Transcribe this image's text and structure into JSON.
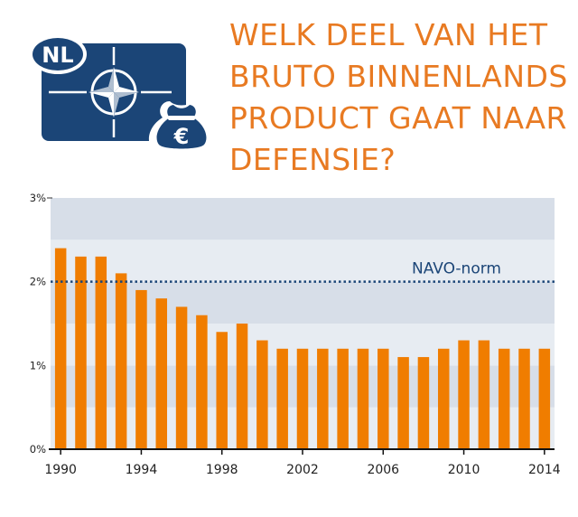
{
  "logo": {
    "badge_text": "NL",
    "currency_symbol": "€"
  },
  "title_lines": [
    "WELK DEEL VAN HET",
    "BRUTO BINNENLANDS",
    "PRODUCT GAAT NAAR",
    "DEFENSIE?"
  ],
  "colors": {
    "accent": "#f07d00",
    "title": "#e87a22",
    "navy": "#1b4577",
    "band_dark": "#d7dee8",
    "band_light": "#e7ecf2"
  },
  "chart_data": {
    "type": "bar",
    "categories": [
      "1990",
      "1991",
      "1992",
      "1993",
      "1994",
      "1995",
      "1996",
      "1997",
      "1998",
      "1999",
      "2000",
      "2001",
      "2002",
      "2003",
      "2004",
      "2005",
      "2006",
      "2007",
      "2008",
      "2009",
      "2010",
      "2011",
      "2012",
      "2013",
      "2014"
    ],
    "values": [
      2.4,
      2.3,
      2.3,
      2.1,
      1.9,
      1.8,
      1.7,
      1.6,
      1.4,
      1.5,
      1.3,
      1.2,
      1.2,
      1.2,
      1.2,
      1.2,
      1.2,
      1.1,
      1.1,
      1.2,
      1.3,
      1.3,
      1.2,
      1.2,
      1.2
    ],
    "x_tick_labels": [
      "1990",
      "1994",
      "1998",
      "2002",
      "2006",
      "2010",
      "2014"
    ],
    "y_tick_labels": [
      "0%",
      "1%",
      "2%",
      "3%"
    ],
    "ylim": [
      0,
      3
    ],
    "reference_line": {
      "value": 2,
      "label": "NAVO-norm"
    },
    "title": "WELK DEEL VAN HET BRUTO BINNENLANDS PRODUCT GAAT NAAR DEFENSIE?",
    "xlabel": "",
    "ylabel": ""
  }
}
